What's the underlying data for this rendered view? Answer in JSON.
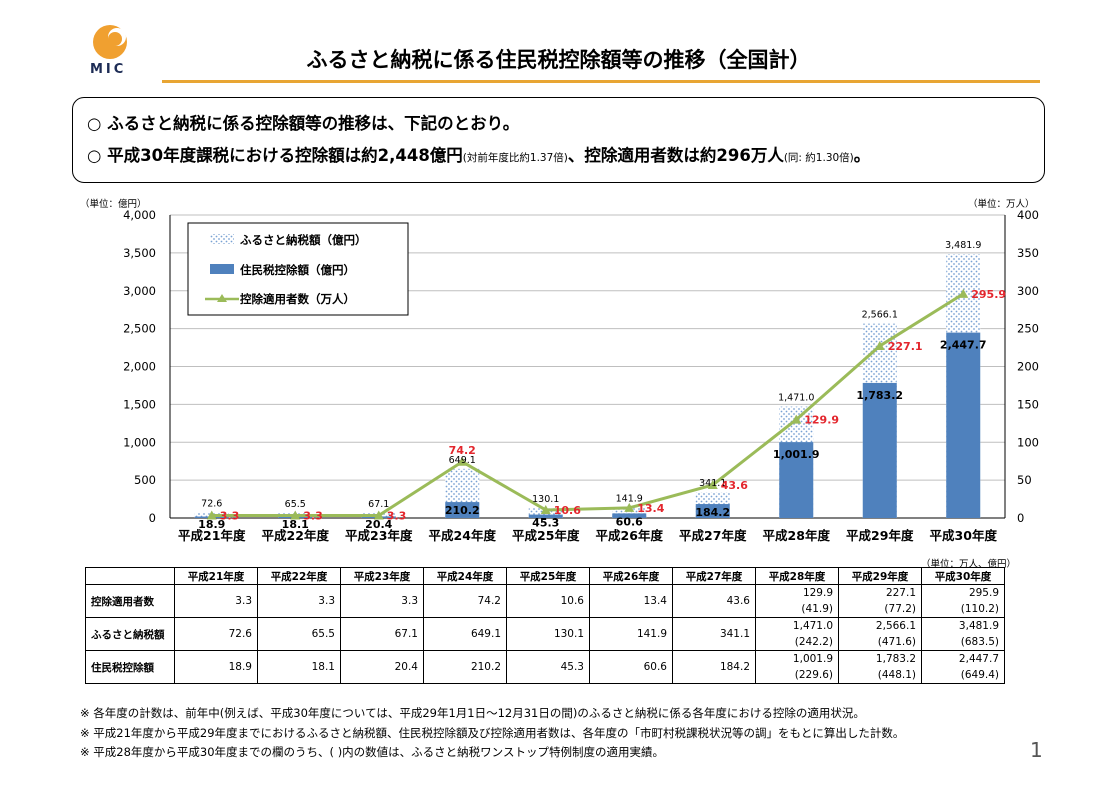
{
  "logo": {
    "text": "MIC"
  },
  "title": "ふるさと納税に係る住民税控除額等の推移（全国計）",
  "summary": {
    "line1": "○  ふるさと納税に係る控除額等の推移は、下記のとおり。",
    "line2_main": "○  平成30年度課税における控除額は約2,448億円",
    "line2_note": "(対前年度比約1.37倍)",
    "line2_main2": "、控除適用者数は約296万人",
    "line2_note2": "(同: 約1.30倍)",
    "line2_end": "。"
  },
  "chart_data": {
    "type": "bar",
    "categories": [
      "平成21年度",
      "平成22年度",
      "平成23年度",
      "平成24年度",
      "平成25年度",
      "平成26年度",
      "平成27年度",
      "平成28年度",
      "平成29年度",
      "平成30年度"
    ],
    "series": [
      {
        "name": "ふるさと納税額（億円）",
        "type": "bar",
        "axis": "left",
        "values": [
          72.6,
          65.5,
          67.1,
          649.1,
          130.1,
          141.9,
          341.1,
          1471.0,
          2566.1,
          3481.9
        ],
        "labels": [
          "72.6",
          "65.5",
          "67.1",
          "649.1",
          "130.1",
          "141.9",
          "341.1",
          "1,471.0",
          "2,566.1",
          "3,481.9"
        ]
      },
      {
        "name": "住民税控除額（億円）",
        "type": "bar",
        "axis": "left",
        "values": [
          18.9,
          18.1,
          20.4,
          210.2,
          45.3,
          60.6,
          184.2,
          1001.9,
          1783.2,
          2447.7
        ],
        "labels": [
          "18.9",
          "18.1",
          "20.4",
          "210.2",
          "45.3",
          "60.6",
          "184.2",
          "1,001.9",
          "1,783.2",
          "2,447.7"
        ]
      },
      {
        "name": "控除適用者数（万人）",
        "type": "line",
        "axis": "right",
        "values": [
          3.3,
          3.3,
          3.3,
          74.2,
          10.6,
          13.4,
          43.6,
          129.9,
          227.1,
          295.9
        ],
        "labels": [
          "3.3",
          "3.3",
          "3.3",
          "74.2",
          "10.6",
          "13.4",
          "43.6",
          "129.9",
          "227.1",
          "295.9"
        ]
      }
    ],
    "ylim_left": [
      0,
      4000
    ],
    "ylim_right": [
      0,
      400
    ],
    "yticks_left": [
      "0",
      "500",
      "1,000",
      "1,500",
      "2,000",
      "2,500",
      "3,000",
      "3,500",
      "4,000"
    ],
    "yticks_right": [
      "0",
      "50",
      "100",
      "150",
      "200",
      "250",
      "300",
      "350",
      "400"
    ],
    "ylabel_left": "（単位：億円）",
    "ylabel_right": "（単位：万人）",
    "legend_position": "top-left",
    "colors": {
      "furusato": "#8fb0d8",
      "juminzei": "#4f81bd",
      "line": "#9bbb59",
      "line_label": "#e3262d"
    }
  },
  "table": {
    "unit": "（単位：万人、億円）",
    "headers": [
      "",
      "平成21年度",
      "平成22年度",
      "平成23年度",
      "平成24年度",
      "平成25年度",
      "平成26年度",
      "平成27年度",
      "平成28年度",
      "平成29年度",
      "平成30年度"
    ],
    "rows": [
      {
        "label": "控除適用者数",
        "values": [
          "3.3",
          "3.3",
          "3.3",
          "74.2",
          "10.6",
          "13.4",
          "43.6"
        ],
        "values2": [
          [
            "129.9",
            "(41.9)"
          ],
          [
            "227.1",
            "(77.2)"
          ],
          [
            "295.9",
            "(110.2)"
          ]
        ]
      },
      {
        "label": "ふるさと納税額",
        "values": [
          "72.6",
          "65.5",
          "67.1",
          "649.1",
          "130.1",
          "141.9",
          "341.1"
        ],
        "values2": [
          [
            "1,471.0",
            "(242.2)"
          ],
          [
            "2,566.1",
            "(471.6)"
          ],
          [
            "3,481.9",
            "(683.5)"
          ]
        ]
      },
      {
        "label": "住民税控除額",
        "values": [
          "18.9",
          "18.1",
          "20.4",
          "210.2",
          "45.3",
          "60.6",
          "184.2"
        ],
        "values2": [
          [
            "1,001.9",
            "(229.6)"
          ],
          [
            "1,783.2",
            "(448.1)"
          ],
          [
            "2,447.7",
            "(649.4)"
          ]
        ]
      }
    ]
  },
  "notes": [
    "※  各年度の計数は、前年中(例えば、平成30年度については、平成29年1月1日〜12月31日の間)のふるさと納税に係る各年度における控除の適用状況。",
    "※  平成21年度から平成29年度までにおけるふるさと納税額、住民税控除額及び控除適用者数は、各年度の「市町村税課税状況等の調」をもとに算出した計数。",
    "※  平成28年度から平成30年度までの欄のうち、( )内の数値は、ふるさと納税ワンストップ特例制度の適用実績。"
  ],
  "page_number": "1"
}
